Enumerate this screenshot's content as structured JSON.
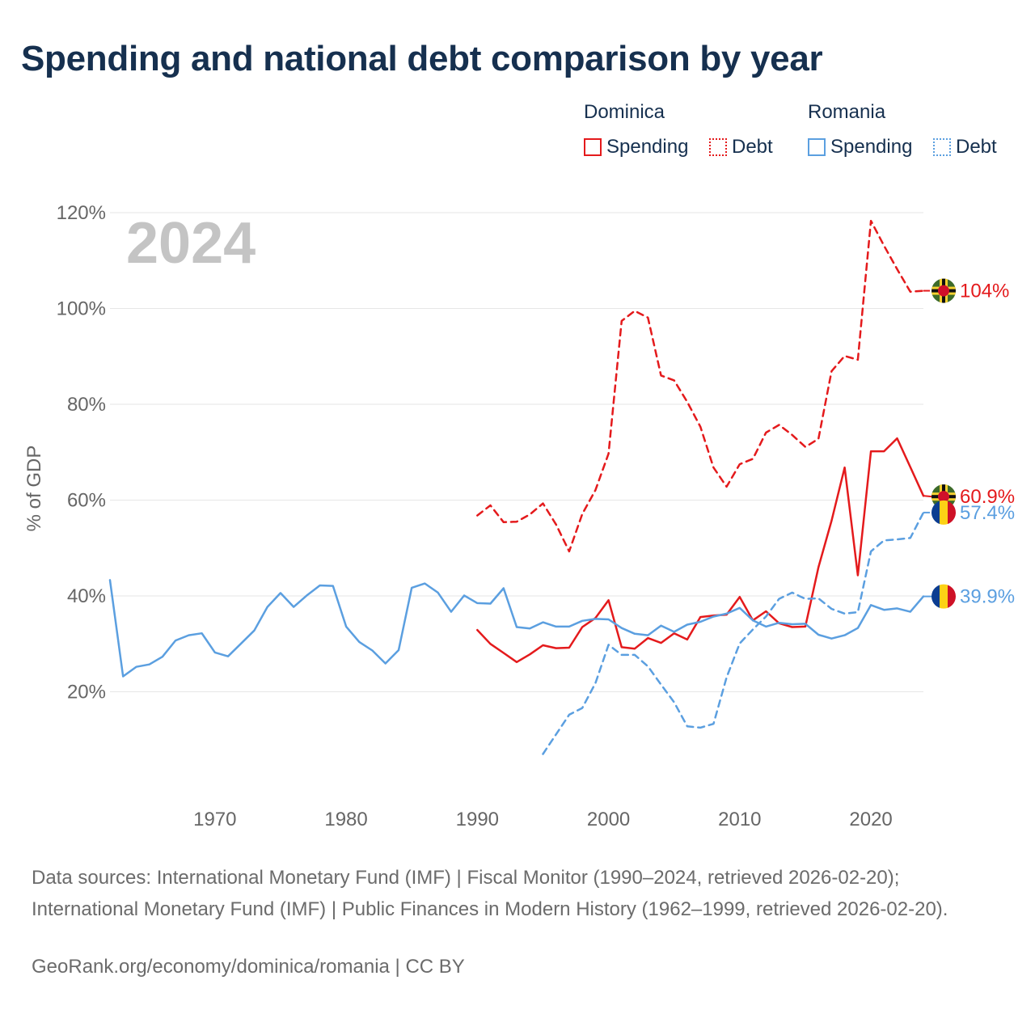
{
  "title": "Spending and national debt comparison by year",
  "legend": {
    "groups": [
      {
        "country": "Dominica",
        "items": [
          {
            "label": "Spending",
            "color": "#e41a1c",
            "style": "solid"
          },
          {
            "label": "Debt",
            "color": "#e41a1c",
            "style": "dotted"
          }
        ]
      },
      {
        "country": "Romania",
        "items": [
          {
            "label": "Spending",
            "color": "#5b9fe0",
            "style": "solid"
          },
          {
            "label": "Debt",
            "color": "#5b9fe0",
            "style": "dotted"
          }
        ]
      }
    ]
  },
  "chart_data": {
    "type": "line",
    "year_watermark": "2024",
    "ylabel": "% of GDP",
    "ylim": [
      0,
      120
    ],
    "xlim": [
      1962,
      2024
    ],
    "y_ticks": [
      {
        "value": 20,
        "label": "20%"
      },
      {
        "value": 40,
        "label": "40%"
      },
      {
        "value": 60,
        "label": "60%"
      },
      {
        "value": 80,
        "label": "80%"
      },
      {
        "value": 100,
        "label": "100%"
      },
      {
        "value": 120,
        "label": "120%"
      }
    ],
    "x_ticks": [
      {
        "value": 1970,
        "label": "1970"
      },
      {
        "value": 1980,
        "label": "1980"
      },
      {
        "value": 1990,
        "label": "1990"
      },
      {
        "value": 2000,
        "label": "2000"
      },
      {
        "value": 2010,
        "label": "2010"
      },
      {
        "value": 2020,
        "label": "2020"
      }
    ],
    "series": [
      {
        "name": "Dominica Debt",
        "country": "Dominica",
        "measure": "Debt",
        "color": "#e41a1c",
        "dashed": true,
        "end_label": "104%",
        "flag": "dominica",
        "x": [
          1990,
          1991,
          1992,
          1993,
          1994,
          1995,
          1996,
          1997,
          1998,
          1999,
          2000,
          2001,
          2002,
          2003,
          2004,
          2005,
          2006,
          2007,
          2008,
          2009,
          2010,
          2011,
          2012,
          2013,
          2014,
          2015,
          2016,
          2017,
          2018,
          2019,
          2020,
          2021,
          2022,
          2023,
          2024
        ],
        "values": [
          56.8,
          58.9,
          55.4,
          55.5,
          57.0,
          59.3,
          54.9,
          49.3,
          57.1,
          62.1,
          69.7,
          97.4,
          99.5,
          98.1,
          86.0,
          85.0,
          80.5,
          75.3,
          66.8,
          62.8,
          67.5,
          68.6,
          74.1,
          75.7,
          73.6,
          71.1,
          72.8,
          86.9,
          90.1,
          89.3,
          118.3,
          113.1,
          108.2,
          103.5,
          103.7
        ]
      },
      {
        "name": "Dominica Spending",
        "country": "Dominica",
        "measure": "Spending",
        "color": "#e41a1c",
        "dashed": false,
        "end_label": "60.9%",
        "flag": "dominica",
        "x": [
          1990,
          1991,
          1992,
          1993,
          1994,
          1995,
          1996,
          1997,
          1998,
          1999,
          2000,
          2001,
          2002,
          2003,
          2004,
          2005,
          2006,
          2007,
          2008,
          2009,
          2010,
          2011,
          2012,
          2013,
          2014,
          2015,
          2016,
          2017,
          2018,
          2019,
          2020,
          2021,
          2022,
          2023,
          2024
        ],
        "values": [
          32.9,
          30.0,
          28.1,
          26.2,
          27.8,
          29.7,
          29.1,
          29.2,
          33.5,
          35.4,
          39.1,
          29.3,
          29.0,
          31.2,
          30.2,
          32.2,
          30.9,
          35.6,
          35.9,
          36.1,
          39.8,
          34.9,
          36.8,
          34.3,
          33.5,
          33.6,
          46.0,
          55.7,
          66.8,
          44.3,
          70.2,
          70.2,
          72.9,
          66.9,
          60.9
        ]
      },
      {
        "name": "Romania Debt",
        "country": "Romania",
        "measure": "Debt",
        "color": "#5b9fe0",
        "dashed": true,
        "end_label": "57.4%",
        "flag": "romania",
        "x": [
          1995,
          1996,
          1997,
          1998,
          1999,
          2000,
          2001,
          2002,
          2003,
          2004,
          2005,
          2006,
          2007,
          2008,
          2009,
          2010,
          2011,
          2012,
          2013,
          2014,
          2015,
          2016,
          2017,
          2018,
          2019,
          2020,
          2021,
          2022,
          2023,
          2024
        ],
        "values": [
          7.0,
          11.1,
          15.2,
          16.6,
          21.8,
          29.8,
          27.7,
          27.7,
          25.3,
          21.5,
          17.8,
          12.8,
          12.5,
          13.3,
          23.0,
          30.1,
          33.0,
          35.7,
          39.4,
          40.7,
          39.4,
          39.5,
          37.3,
          36.3,
          36.6,
          49.3,
          51.6,
          51.8,
          52.1,
          57.4
        ]
      },
      {
        "name": "Romania Spending",
        "country": "Romania",
        "measure": "Spending",
        "color": "#5b9fe0",
        "dashed": false,
        "end_label": "39.9%",
        "flag": "romania",
        "x": [
          1962,
          1963,
          1964,
          1965,
          1966,
          1967,
          1968,
          1969,
          1970,
          1971,
          1972,
          1973,
          1974,
          1975,
          1976,
          1977,
          1978,
          1979,
          1980,
          1981,
          1982,
          1983,
          1984,
          1985,
          1986,
          1987,
          1988,
          1989,
          1990,
          1991,
          1992,
          1993,
          1994,
          1995,
          1996,
          1997,
          1998,
          1999,
          2000,
          2001,
          2002,
          2003,
          2004,
          2005,
          2006,
          2007,
          2008,
          2009,
          2010,
          2011,
          2012,
          2013,
          2014,
          2015,
          2016,
          2017,
          2018,
          2019,
          2020,
          2021,
          2022,
          2023,
          2024
        ],
        "values": [
          43.3,
          23.2,
          25.2,
          25.7,
          27.3,
          30.7,
          31.8,
          32.2,
          28.2,
          27.4,
          30.1,
          32.8,
          37.7,
          40.6,
          37.7,
          40.1,
          42.2,
          42.1,
          33.6,
          30.4,
          28.6,
          25.9,
          28.7,
          41.7,
          42.6,
          40.7,
          36.7,
          40.1,
          38.5,
          38.4,
          41.6,
          33.5,
          33.2,
          34.5,
          33.6,
          33.6,
          34.8,
          35.2,
          35.1,
          33.3,
          32.1,
          31.8,
          33.8,
          32.5,
          34.0,
          34.6,
          35.7,
          36.3,
          37.5,
          34.9,
          33.6,
          34.4,
          34.1,
          34.2,
          31.9,
          31.1,
          31.8,
          33.3,
          38.1,
          37.1,
          37.4,
          36.7,
          39.9
        ]
      }
    ]
  },
  "footer": {
    "sources": "Data sources: International Monetary Fund (IMF) | Fiscal Monitor (1990–2024, retrieved 2026-02-20); International Monetary Fund (IMF) | Public Finances in Modern History (1962–1999, retrieved 2026-02-20).",
    "credit": "GeoRank.org/economy/dominica/romania | CC BY"
  }
}
